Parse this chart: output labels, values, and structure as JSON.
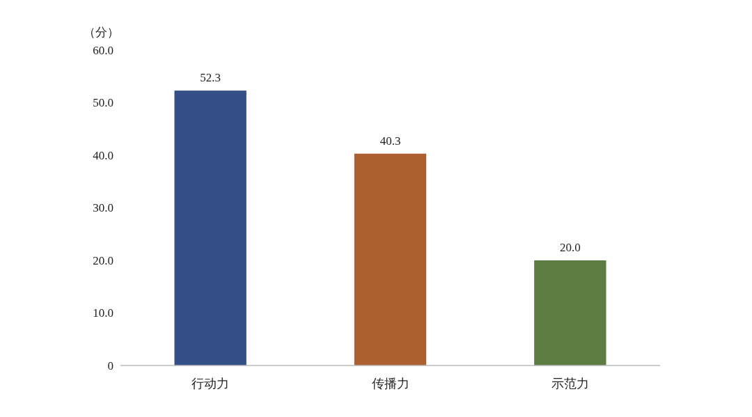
{
  "chart_data": {
    "type": "bar",
    "ylabel": "（分）",
    "categories": [
      "行动力",
      "传播力",
      "示范力"
    ],
    "values": [
      52.3,
      40.3,
      20.0
    ],
    "colors": [
      "#344f87",
      "#ae5f2f",
      "#5d7c41"
    ],
    "value_labels": [
      "52.3",
      "40.3",
      "20.0"
    ],
    "ylim": [
      0,
      60
    ],
    "yticks": [
      0,
      {
        "value": 10,
        "label": "10.0"
      },
      {
        "value": 20,
        "label": "20.0"
      },
      {
        "value": 30,
        "label": "30.0"
      },
      {
        "value": 40,
        "label": "40.0"
      },
      {
        "value": 50,
        "label": "50.0"
      },
      {
        "value": 60,
        "label": "60.0"
      }
    ],
    "grid": false
  }
}
